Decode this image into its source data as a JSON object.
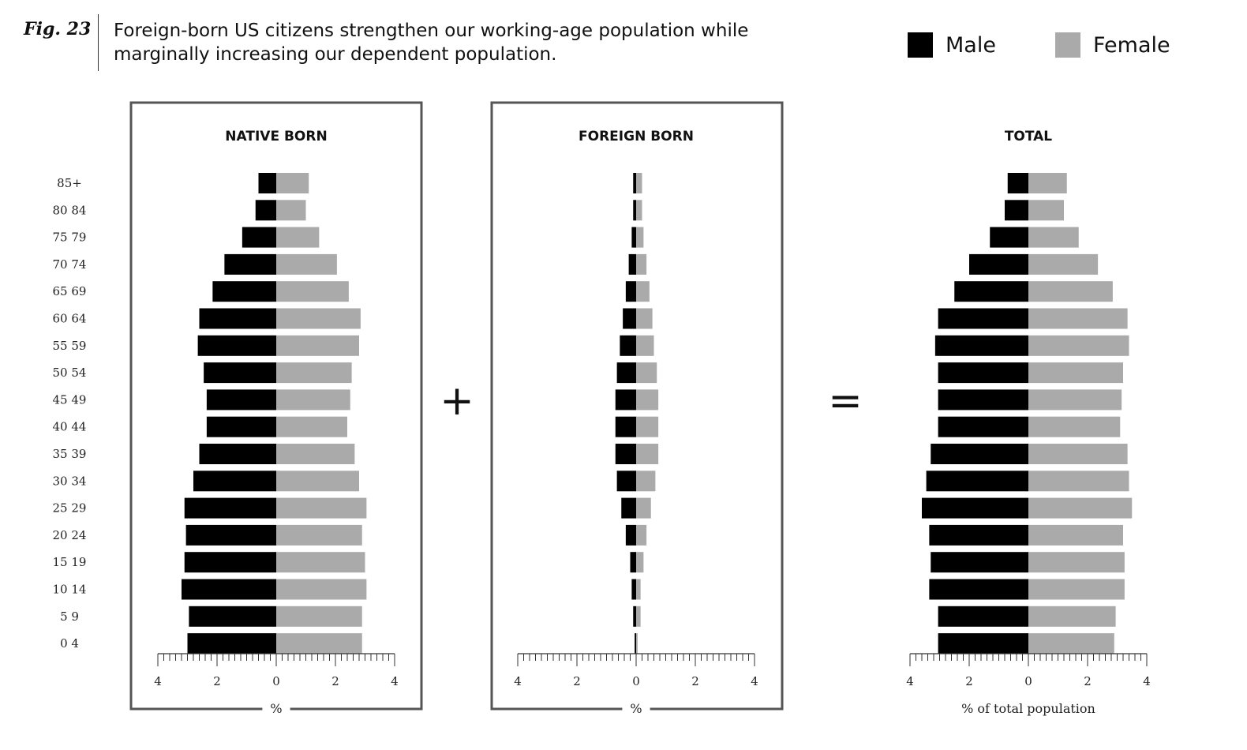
{
  "header": {
    "figure_label": "Fig. 23",
    "title": "Foreign-born US citizens strengthen our working-age population while marginally increasing our dependent population."
  },
  "operators": {
    "plus": "+",
    "equals": "="
  },
  "colors": {
    "male": "#000000",
    "female": "#aaaaaa",
    "frame": "#555555"
  },
  "chart_data": {
    "type": "bar",
    "orientation": "horizontal",
    "subtype": "population-pyramid",
    "legend": {
      "placement": "top-right",
      "entries": [
        "Male",
        "Female"
      ]
    },
    "categories": [
      "85+",
      "80 84",
      "75 79",
      "70 74",
      "65 69",
      "60 64",
      "55 59",
      "50 54",
      "45 49",
      "40 44",
      "35 39",
      "30 34",
      "25 29",
      "20 24",
      "15 19",
      "10 14",
      "5 9",
      "0 4"
    ],
    "xlim": [
      -4,
      4
    ],
    "xticks": [
      4,
      2,
      0,
      2,
      4
    ],
    "panels": [
      {
        "title": "NATIVE BORN",
        "xlabel": "%",
        "series": [
          {
            "name": "Male",
            "values": [
              0.6,
              0.7,
              1.15,
              1.75,
              2.15,
              2.6,
              2.65,
              2.45,
              2.35,
              2.35,
              2.6,
              2.8,
              3.1,
              3.05,
              3.1,
              3.2,
              2.95,
              3.0
            ]
          },
          {
            "name": "Female",
            "values": [
              1.1,
              1.0,
              1.45,
              2.05,
              2.45,
              2.85,
              2.8,
              2.55,
              2.5,
              2.4,
              2.65,
              2.8,
              3.05,
              2.9,
              3.0,
              3.05,
              2.9,
              2.9
            ]
          }
        ]
      },
      {
        "title": "FOREIGN BORN",
        "xlabel": "%",
        "series": [
          {
            "name": "Male",
            "values": [
              0.1,
              0.1,
              0.15,
              0.25,
              0.35,
              0.45,
              0.55,
              0.65,
              0.7,
              0.7,
              0.7,
              0.65,
              0.5,
              0.35,
              0.2,
              0.15,
              0.1,
              0.05
            ]
          },
          {
            "name": "Female",
            "values": [
              0.2,
              0.2,
              0.25,
              0.35,
              0.45,
              0.55,
              0.6,
              0.7,
              0.75,
              0.75,
              0.75,
              0.65,
              0.5,
              0.35,
              0.25,
              0.15,
              0.15,
              0.05
            ]
          }
        ]
      },
      {
        "title": "TOTAL",
        "xlabel": "% of total population",
        "series": [
          {
            "name": "Male",
            "values": [
              0.7,
              0.8,
              1.3,
              2.0,
              2.5,
              3.05,
              3.15,
              3.05,
              3.05,
              3.05,
              3.3,
              3.45,
              3.6,
              3.35,
              3.3,
              3.35,
              3.05,
              3.05
            ]
          },
          {
            "name": "Female",
            "values": [
              1.3,
              1.2,
              1.7,
              2.35,
              2.85,
              3.35,
              3.4,
              3.2,
              3.15,
              3.1,
              3.35,
              3.4,
              3.5,
              3.2,
              3.25,
              3.25,
              2.95,
              2.9
            ]
          }
        ]
      }
    ]
  }
}
